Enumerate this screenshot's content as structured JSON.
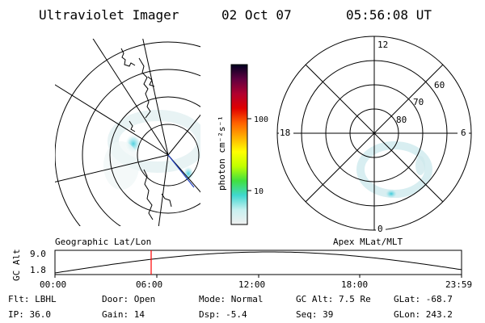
{
  "header": {
    "instrument": "Ultraviolet Imager",
    "date": "02 Oct 07",
    "time": "05:56:08 UT"
  },
  "geo_panel": {
    "label": "Geographic Lat/Lon"
  },
  "apex_panel": {
    "label": "Apex MLat/MLT",
    "mlt_labels": {
      "top": "12",
      "left": "18",
      "right": "6",
      "bottom": "0"
    },
    "lat_labels": [
      "60",
      "70",
      "80"
    ]
  },
  "colorbar": {
    "unit_label": "photon cm⁻²s⁻¹",
    "tick_labels": [
      "100",
      "10"
    ],
    "colors": [
      "#f0f0f0",
      "#c8f0f0",
      "#40d8d0",
      "#40e040",
      "#c0ff00",
      "#ffff00",
      "#ffb000",
      "#ff6000",
      "#e00000",
      "#b00030",
      "#600040",
      "#000020"
    ]
  },
  "altitude_panel": {
    "ylabel": "GC Alt",
    "yticks": [
      "9.0",
      "1.8"
    ],
    "xticks": [
      "00:00",
      "06:00",
      "12:00",
      "18:00",
      "23:59"
    ],
    "current_marker_color": "#ff0000"
  },
  "footer": {
    "row1": [
      {
        "label": "Flt: LBHL"
      },
      {
        "label": "Door: Open"
      },
      {
        "label": "Mode: Normal"
      },
      {
        "label": "GC Alt: 7.5 Re"
      },
      {
        "label": "GLat: -68.7"
      }
    ],
    "row2": [
      {
        "label": "IP: 36.0"
      },
      {
        "label": "Gain: 14"
      },
      {
        "label": "Dsp:   -5.4"
      },
      {
        "label": "Seq: 39"
      },
      {
        "label": "GLon: 243.2"
      }
    ]
  }
}
